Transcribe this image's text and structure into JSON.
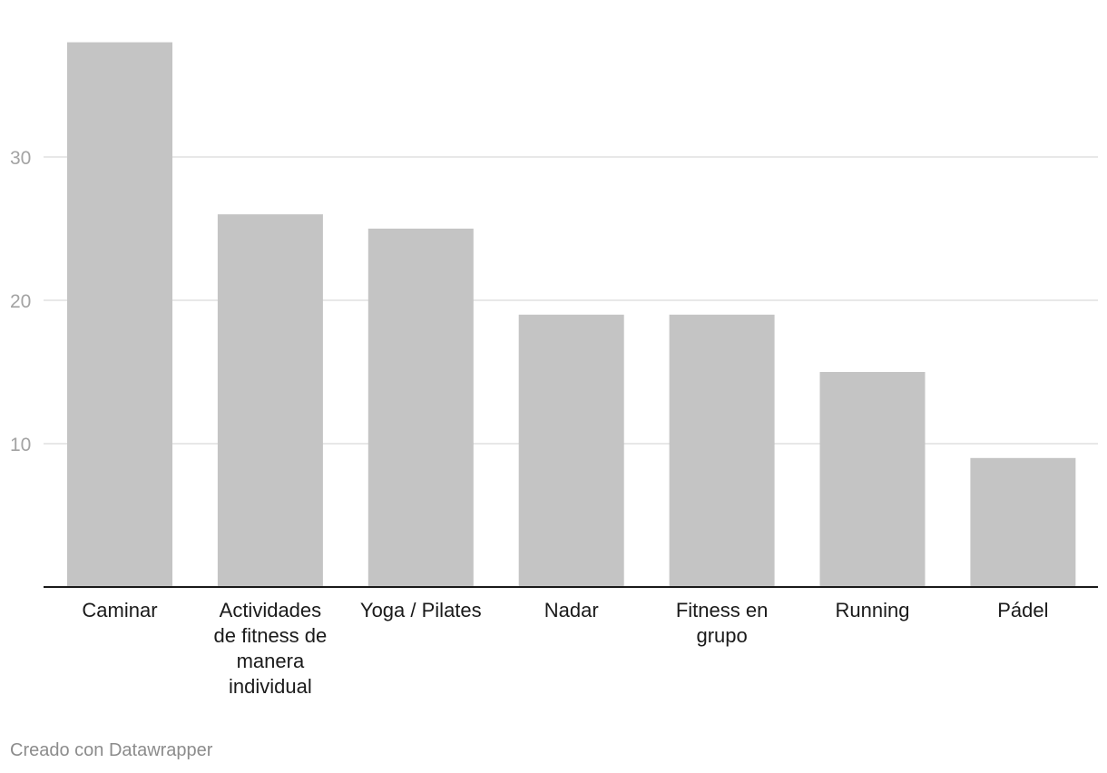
{
  "chart_data": {
    "type": "bar",
    "categories": [
      "Caminar",
      "Actividades de fitness de manera individual",
      "Yoga / Pilates",
      "Nadar",
      "Fitness en grupo",
      "Running",
      "Pádel"
    ],
    "category_lines": [
      [
        "Caminar"
      ],
      [
        "Actividades",
        "de fitness de",
        "manera",
        "individual"
      ],
      [
        "Yoga / Pilates"
      ],
      [
        "Nadar"
      ],
      [
        "Fitness en",
        "grupo"
      ],
      [
        "Running"
      ],
      [
        "Pádel"
      ]
    ],
    "values": [
      38,
      26,
      25,
      19,
      19,
      15,
      9
    ],
    "yticks": [
      10,
      20,
      30
    ],
    "ylim": [
      0,
      40
    ],
    "grid": true,
    "bar_color": "#c4c4c4",
    "title": "",
    "xlabel": "",
    "ylabel": ""
  },
  "footer": {
    "credit": "Creado con Datawrapper"
  }
}
